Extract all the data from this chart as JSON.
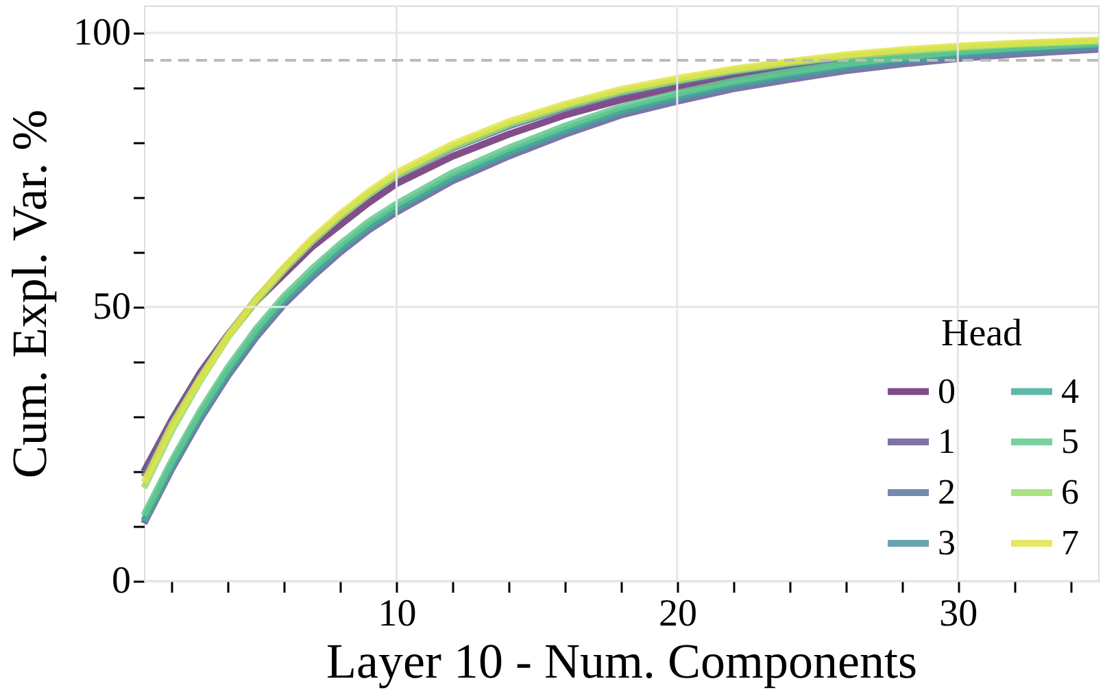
{
  "chart_data": {
    "type": "line",
    "xlabel": "Layer 10 - Num. Components",
    "ylabel": "Cum. Expl. Var. %",
    "legend_title": "Head",
    "legend": "bottom right",
    "grid": true,
    "line_style": "solid",
    "x": [
      1,
      2,
      3,
      4,
      5,
      6,
      7,
      8,
      9,
      10,
      12,
      14,
      16,
      18,
      20,
      22,
      24,
      26,
      28,
      30,
      32,
      35
    ],
    "xlim": [
      1,
      35
    ],
    "ylim": [
      0,
      105
    ],
    "xticks": [
      {
        "value": 2,
        "label": null
      },
      {
        "value": 4,
        "label": null
      },
      {
        "value": 6,
        "label": null
      },
      {
        "value": 8,
        "label": null
      },
      10,
      {
        "value": 12,
        "label": null
      },
      {
        "value": 14,
        "label": null
      },
      {
        "value": 16,
        "label": null
      },
      {
        "value": 18,
        "label": null
      },
      20,
      {
        "value": 22,
        "label": null
      },
      {
        "value": 24,
        "label": null
      },
      {
        "value": 26,
        "label": null
      },
      {
        "value": 28,
        "label": null
      },
      30,
      {
        "value": 32,
        "label": null
      },
      {
        "value": 34,
        "label": null
      }
    ],
    "yticks": [
      0,
      {
        "value": 10,
        "label": null
      },
      {
        "value": 20,
        "label": null
      },
      {
        "value": 30,
        "label": null
      },
      {
        "value": 40,
        "label": null
      },
      50,
      {
        "value": 60,
        "label": null
      },
      {
        "value": 70,
        "label": null
      },
      {
        "value": 80,
        "label": null
      },
      {
        "value": 90,
        "label": null
      },
      100
    ],
    "ref_lines": [
      {
        "axis": "y",
        "value": 95,
        "color": "#bbbbbb",
        "line_style": "dashed"
      }
    ],
    "series": [
      {
        "name": "0",
        "color": "#6b2f76",
        "values": [
          20,
          29.5,
          38,
          45,
          51,
          56,
          61,
          65,
          69,
          72.5,
          77.5,
          81.5,
          85,
          87.8,
          90,
          91.8,
          93.3,
          94.6,
          95.6,
          96.4,
          97,
          97.8
        ]
      },
      {
        "name": "1",
        "color": "#6a5a96",
        "values": [
          10.5,
          20.5,
          29.5,
          37.5,
          44.5,
          50.5,
          55.5,
          60,
          64,
          67.3,
          73,
          77.5,
          81.5,
          85,
          87.5,
          89.8,
          91.5,
          93.1,
          94.3,
          95.3,
          96.1,
          97
        ]
      },
      {
        "name": "2",
        "color": "#5b76a0",
        "values": [
          19,
          29,
          37.5,
          45,
          51.5,
          57,
          62,
          66.5,
          70.5,
          73.8,
          79,
          83,
          86.3,
          89,
          91,
          92.8,
          94.2,
          95.4,
          96.3,
          97,
          97.6,
          98.3
        ]
      },
      {
        "name": "3",
        "color": "#4f94a2",
        "values": [
          11,
          21,
          30,
          38,
          45,
          51,
          56,
          60.5,
          64.5,
          67.8,
          73.5,
          78,
          82,
          85.5,
          88,
          90.3,
          92,
          93.6,
          94.8,
          95.8,
          96.6,
          97.5
        ]
      },
      {
        "name": "4",
        "color": "#44ab98",
        "values": [
          11,
          21.3,
          30.3,
          38.3,
          45.3,
          51.3,
          56.3,
          60.8,
          64.8,
          68.1,
          73.8,
          78.3,
          82.4,
          85.9,
          88.5,
          90.8,
          92.5,
          94.1,
          95.3,
          96.3,
          97.1,
          97.9
        ]
      },
      {
        "name": "5",
        "color": "#62c98e",
        "values": [
          12,
          22,
          31,
          39,
          46,
          52,
          57,
          61.5,
          65.5,
          68.8,
          74.5,
          79,
          83,
          86.5,
          89,
          91.2,
          92.9,
          94.4,
          95.6,
          96.6,
          97.3,
          98.1
        ]
      },
      {
        "name": "6",
        "color": "#9cdc6e",
        "values": [
          17,
          27.5,
          36.5,
          44.5,
          51,
          56.8,
          62,
          66.5,
          70.5,
          74,
          79.2,
          83.3,
          86.6,
          89.3,
          91.3,
          93.1,
          94.5,
          95.7,
          96.6,
          97.3,
          97.9,
          98.5
        ]
      },
      {
        "name": "7",
        "color": "#e2e54a",
        "values": [
          18,
          28.5,
          37,
          44.8,
          51.5,
          57.3,
          62.5,
          67,
          71,
          74.5,
          79.7,
          83.8,
          87,
          89.7,
          91.7,
          93.4,
          94.8,
          96,
          96.9,
          97.6,
          98.1,
          98.7
        ]
      }
    ]
  }
}
